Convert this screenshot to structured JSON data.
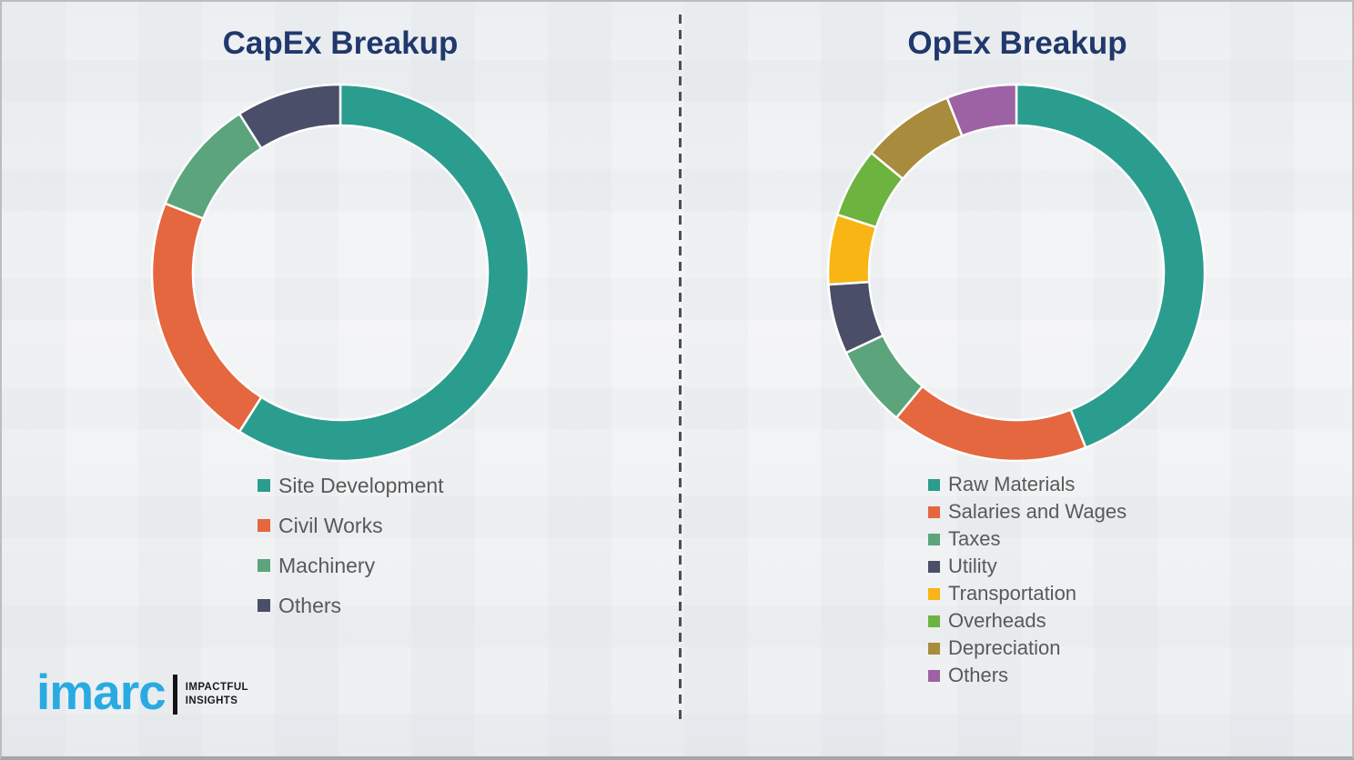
{
  "chart_data": [
    {
      "type": "pie",
      "subtype": "donut",
      "title": "CapEx Breakup",
      "categories": [
        "Site Development",
        "Civil Works",
        "Machinery",
        "Others"
      ],
      "values": [
        59,
        22,
        10,
        9
      ],
      "colors": [
        "#2a9d8f",
        "#e4673f",
        "#5ba47c",
        "#4a4e68"
      ],
      "start_angle_deg": 0,
      "legend_position": "below-left"
    },
    {
      "type": "pie",
      "subtype": "donut",
      "title": "OpEx Breakup",
      "categories": [
        "Raw Materials",
        "Salaries and Wages",
        "Taxes",
        "Utility",
        "Transportation",
        "Overheads",
        "Depreciation",
        "Others"
      ],
      "values": [
        44,
        17,
        7,
        6,
        6,
        6,
        8,
        6
      ],
      "colors": [
        "#2a9d8f",
        "#e4673f",
        "#5ba47c",
        "#4a4e68",
        "#f8b513",
        "#6db33f",
        "#a98b3d",
        "#9d62a4"
      ],
      "start_angle_deg": 0,
      "legend_position": "below-left"
    }
  ],
  "logo": {
    "brand": "imarc",
    "tagline_line1": "IMPACTFUL",
    "tagline_line2": "INSIGHTS",
    "brand_color": "#29abe2"
  },
  "colors": {
    "title_navy": "#20386b",
    "legend_text": "#595959",
    "divider_gray": "#4f4f50",
    "page_background": "#f4f5f6"
  }
}
